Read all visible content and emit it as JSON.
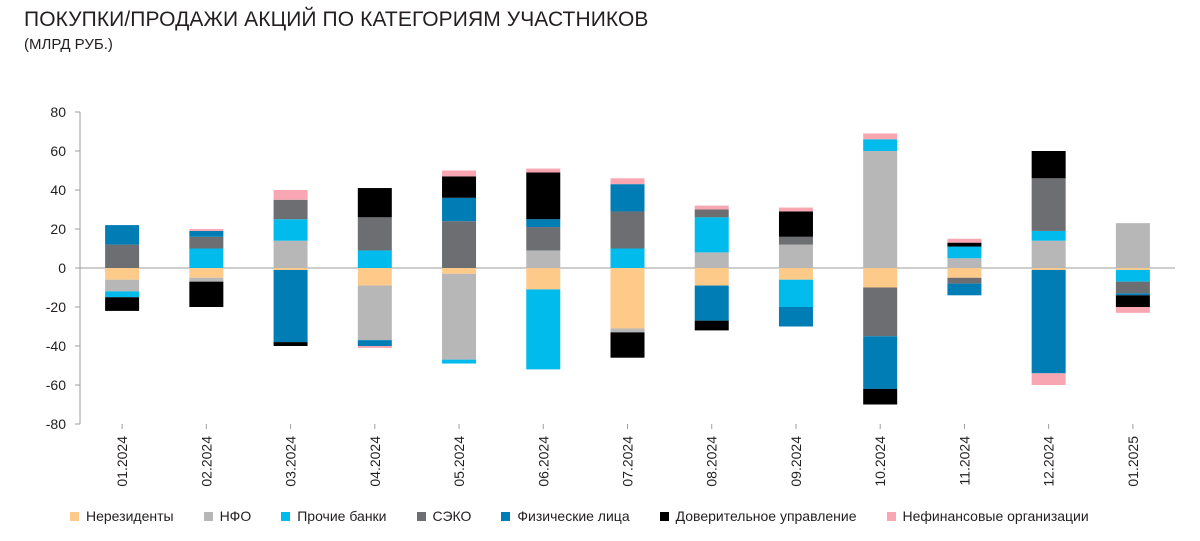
{
  "title": "ПОКУПКИ/ПРОДАЖИ АКЦИЙ ПО КАТЕГОРИЯМ УЧАСТНИКОВ",
  "subtitle": "(МЛРД РУБ.)",
  "chart_data": {
    "type": "bar",
    "stacked": true,
    "ylim": [
      -80,
      80
    ],
    "yticks": [
      80,
      60,
      40,
      20,
      0,
      -20,
      -40,
      -60,
      -80
    ],
    "grid": false,
    "legend_position": "bottom",
    "categories": [
      "01.2024",
      "02.2024",
      "03.2024",
      "04.2024",
      "05.2024",
      "06.2024",
      "07.2024",
      "08.2024",
      "09.2024",
      "10.2024",
      "11.2024",
      "12.2024",
      "01.2025"
    ],
    "series": [
      {
        "name": "Нерезиденты",
        "color": "#FDCA8A",
        "values": [
          -6,
          -5,
          -1,
          -9,
          -3,
          -11,
          -31,
          -9,
          -6,
          -10,
          -5,
          -1,
          -1
        ]
      },
      {
        "name": "НФО",
        "color": "#B7B7B7",
        "values": [
          -6,
          -2,
          14,
          -28,
          -44,
          9,
          -2,
          8,
          12,
          60,
          5,
          14,
          23
        ]
      },
      {
        "name": "Прочие банки",
        "color": "#00BBEB",
        "values": [
          -3,
          10,
          11,
          9,
          -2,
          -41,
          10,
          18,
          -14,
          6,
          6,
          5,
          -6
        ]
      },
      {
        "name": "СЭКО",
        "color": "#6D6E71",
        "values": [
          12,
          6,
          10,
          17,
          24,
          12,
          19,
          4,
          4,
          -25,
          -3,
          27,
          -6
        ]
      },
      {
        "name": "Физические лица",
        "color": "#007DB5",
        "values": [
          10,
          3,
          -37,
          -3,
          12,
          4,
          14,
          -18,
          -10,
          -27,
          -6,
          -53,
          -1
        ]
      },
      {
        "name": "Доверительное управление",
        "color": "#000000",
        "values": [
          -7,
          -13,
          -2,
          15,
          11,
          24,
          -13,
          -5,
          13,
          -8,
          2,
          14,
          -6
        ]
      },
      {
        "name": "Нефинансовые организации",
        "color": "#F8A7B2",
        "values": [
          0,
          1,
          5,
          -1,
          3,
          2,
          3,
          2,
          2,
          3,
          2,
          -6,
          -3
        ]
      }
    ]
  }
}
